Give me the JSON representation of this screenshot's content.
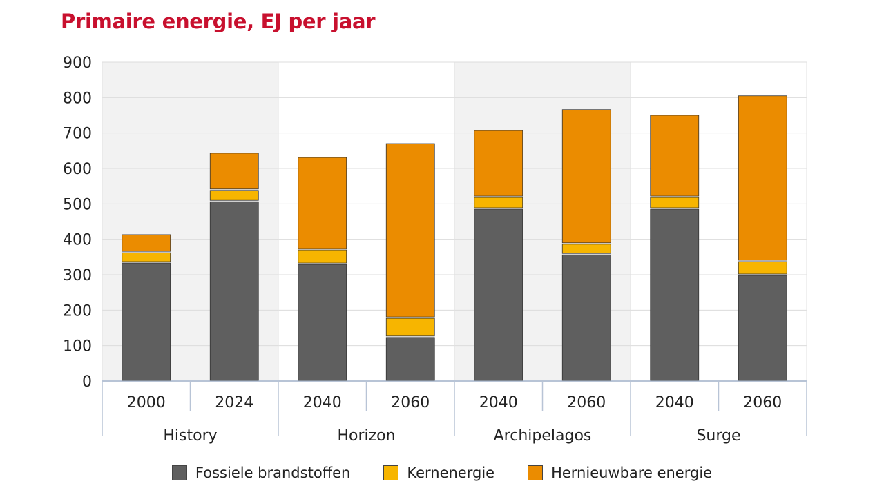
{
  "chart_data": {
    "type": "bar",
    "stacked": true,
    "title": "Primaire energie, EJ per jaar",
    "xlabel": "",
    "ylabel": "",
    "ylim": [
      0,
      900
    ],
    "yticks": [
      0,
      100,
      200,
      300,
      400,
      500,
      600,
      700,
      800,
      900
    ],
    "grid": true,
    "legend_position": "bottom",
    "groups": [
      {
        "label": "History",
        "categories": [
          "2000",
          "2024"
        ],
        "shaded": true
      },
      {
        "label": "Horizon",
        "categories": [
          "2040",
          "2060"
        ],
        "shaded": false
      },
      {
        "label": "Archipelagos",
        "categories": [
          "2040",
          "2060"
        ],
        "shaded": true
      },
      {
        "label": "Surge",
        "categories": [
          "2040",
          "2060"
        ],
        "shaded": false
      }
    ],
    "series": [
      {
        "name": "Fossiele brandstoffen",
        "color": "#5f5f5f",
        "values": [
          335,
          508,
          331,
          125,
          487,
          358,
          487,
          300
        ]
      },
      {
        "name": "Kernenergie",
        "color": "#f7b500",
        "values": [
          29,
          32,
          41,
          54,
          33,
          30,
          33,
          39
        ]
      },
      {
        "name": "Hernieuwbare energie",
        "color": "#eb8c00",
        "values": [
          51,
          105,
          261,
          493,
          189,
          380,
          232,
          468
        ]
      }
    ]
  }
}
